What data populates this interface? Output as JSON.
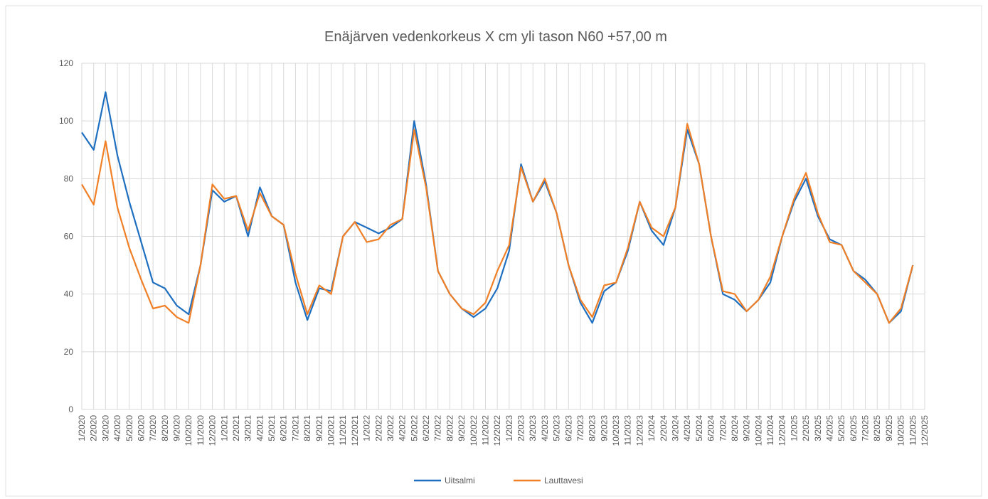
{
  "chart_data": {
    "type": "line",
    "title": "Enäjärven vedenkorkeus X cm yli tason N60 +57,00 m",
    "categories": [
      "1/2020",
      "2/2020",
      "3/2020",
      "4/2020",
      "5/2020",
      "6/2020",
      "7/2020",
      "8/2020",
      "9/2020",
      "10/2020",
      "11/2020",
      "12/2020",
      "1/2021",
      "2/2021",
      "3/2021",
      "4/2021",
      "5/2021",
      "6/2021",
      "7/2021",
      "8/2021",
      "9/2021",
      "10/2021",
      "11/2021",
      "12/2021",
      "1/2022",
      "2/2022",
      "3/2022",
      "4/2022",
      "5/2022",
      "6/2022",
      "7/2022",
      "8/2022",
      "9/2022",
      "10/2022",
      "11/2022",
      "12/2022",
      "1/2023",
      "2/2023",
      "3/2023",
      "4/2023",
      "5/2023",
      "6/2023",
      "7/2023",
      "8/2023",
      "9/2023",
      "10/2023",
      "11/2023",
      "12/2023",
      "1/2024",
      "2/2024",
      "3/2024",
      "4/2024",
      "5/2024",
      "6/2024",
      "7/2024",
      "8/2024",
      "9/2024",
      "10/2024",
      "11/2024",
      "12/2024",
      "1/2025",
      "2/2025",
      "3/2025",
      "4/2025",
      "5/2025",
      "6/2025",
      "7/2025",
      "8/2025",
      "9/2025",
      "10/2025",
      "11/2025",
      "12/2025"
    ],
    "series": [
      {
        "name": "Uitsalmi",
        "color": "#1f6fc1",
        "values": [
          96,
          90,
          110,
          88,
          72,
          58,
          44,
          42,
          36,
          33,
          50,
          76,
          72,
          74,
          60,
          77,
          67,
          64,
          44,
          31,
          42,
          41,
          60,
          65,
          63,
          61,
          63,
          66,
          100,
          78,
          48,
          40,
          35,
          32,
          35,
          42,
          55,
          85,
          72,
          79,
          68,
          50,
          37,
          30,
          41,
          44,
          55,
          72,
          62,
          57,
          70,
          97,
          85,
          60,
          40,
          38,
          34,
          38,
          44,
          60,
          72,
          80,
          67,
          59,
          57,
          48,
          45,
          40,
          30,
          34,
          50,
          null
        ]
      },
      {
        "name": "Lauttavesi",
        "color": "#f07f26",
        "values": [
          78,
          71,
          93,
          70,
          56,
          45,
          35,
          36,
          32,
          30,
          50,
          78,
          73,
          74,
          62,
          75,
          67,
          64,
          47,
          33,
          43,
          40,
          60,
          65,
          58,
          59,
          64,
          66,
          97,
          77,
          48,
          40,
          35,
          33,
          37,
          48,
          57,
          84,
          72,
          80,
          68,
          50,
          38,
          32,
          43,
          44,
          56,
          72,
          63,
          60,
          70,
          99,
          85,
          60,
          41,
          40,
          34,
          38,
          46,
          60,
          73,
          82,
          68,
          58,
          57,
          48,
          44,
          40,
          30,
          35,
          50,
          null
        ]
      }
    ],
    "ylim": [
      0,
      120
    ],
    "yticks": [
      0,
      20,
      40,
      60,
      80,
      100,
      120
    ],
    "grid": true,
    "legend": "bottom"
  }
}
